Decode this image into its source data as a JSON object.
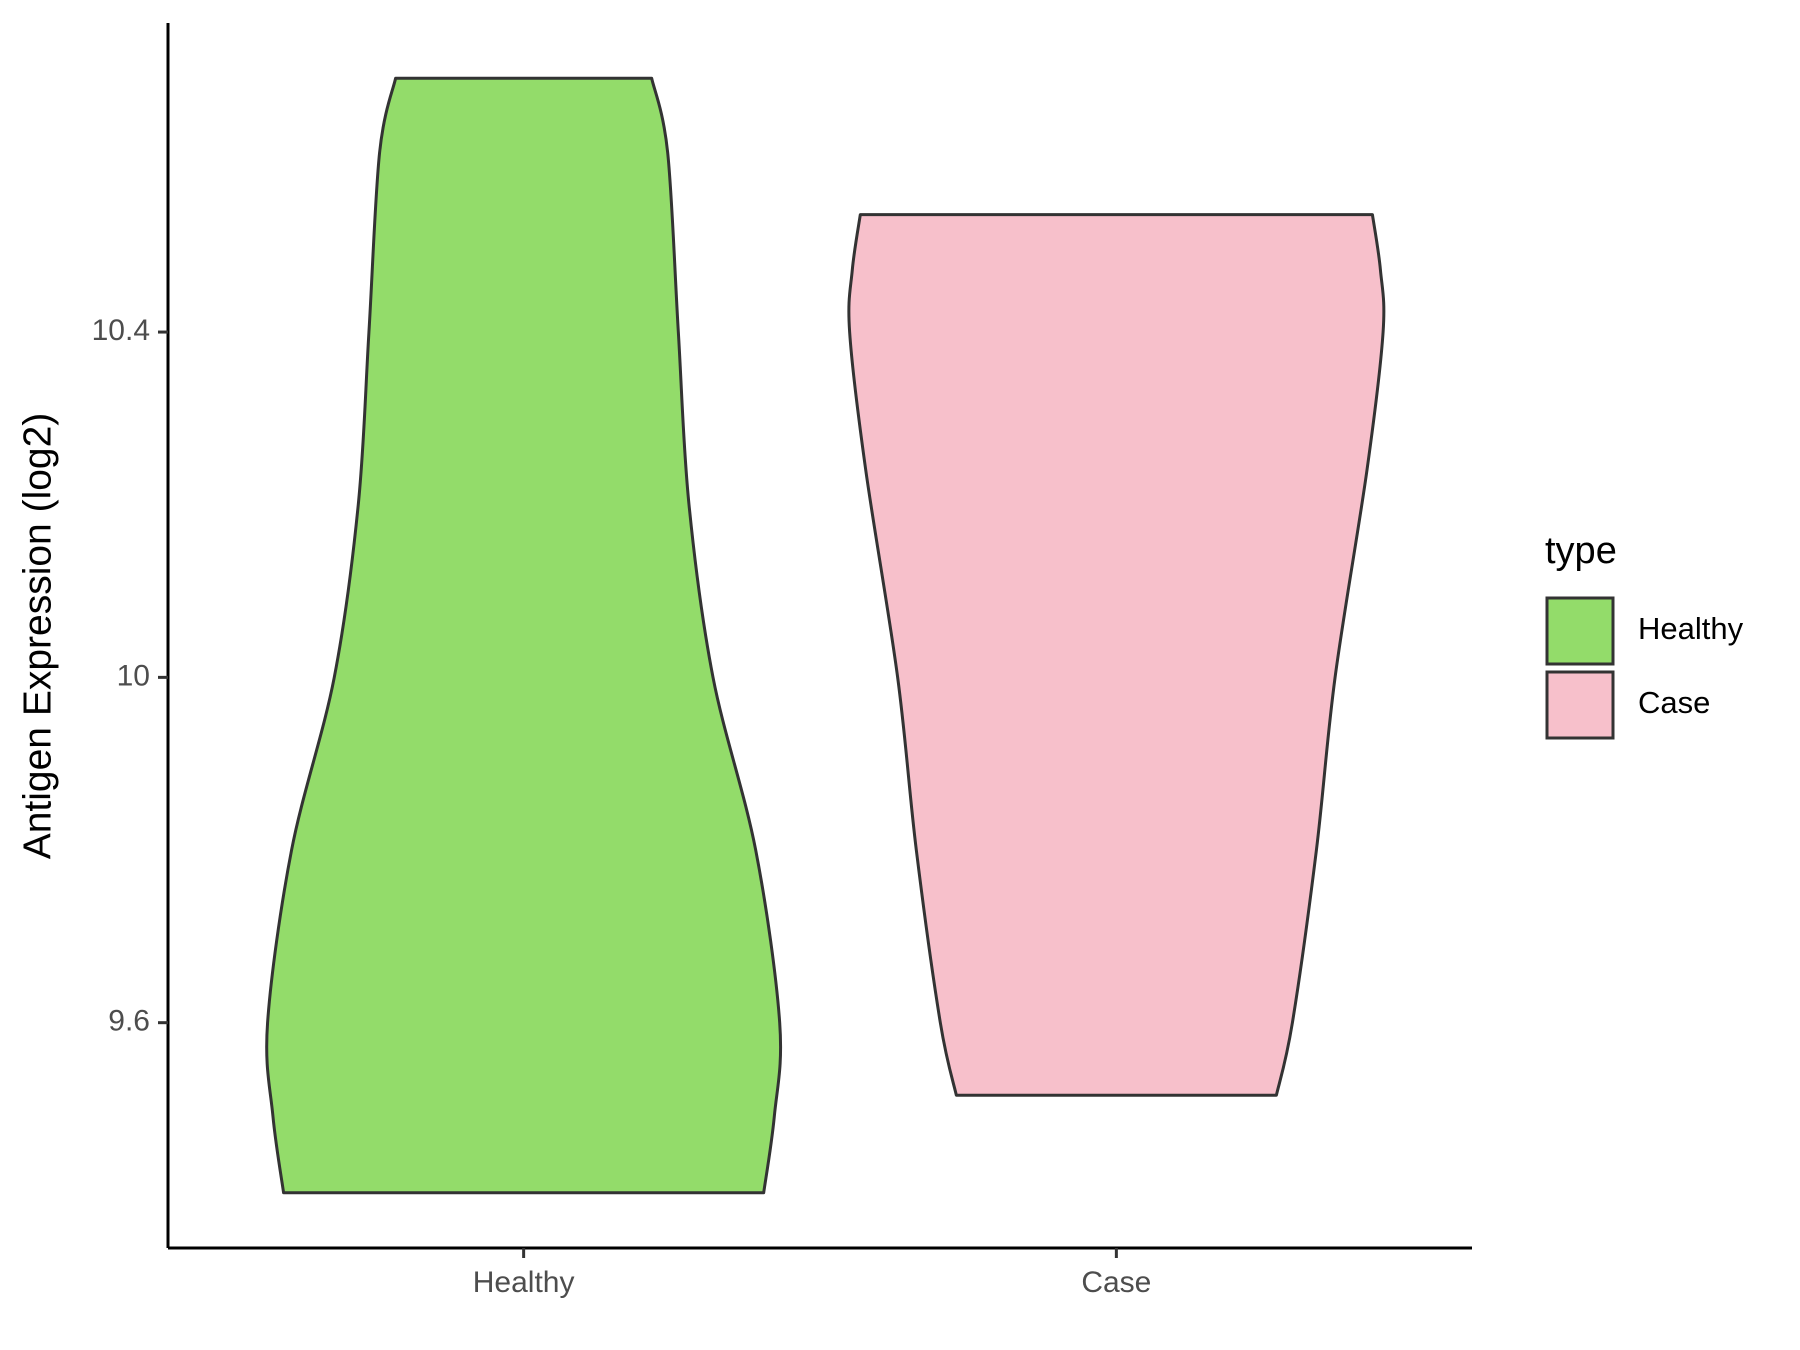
{
  "chart_data": {
    "type": "violin",
    "y_label": "Antigen Expression (log2)",
    "categories": [
      "Healthy",
      "Case"
    ],
    "legend_title": "type",
    "legend_position": "right",
    "ylim": [
      9.339,
      10.758
    ],
    "yticks": [
      9.6,
      10.0,
      10.4
    ],
    "outline_color": "#333333",
    "series": [
      {
        "name": "Healthy",
        "color": "#93dc6a",
        "y": [
          10.694,
          10.608,
          10.4,
          10.2,
          10.0,
          9.8,
          9.6,
          9.492,
          9.403
        ],
        "widths": [
          0.48,
          0.54,
          0.58,
          0.62,
          0.71,
          0.87,
          0.96,
          0.94,
          0.9
        ]
      },
      {
        "name": "Case",
        "color": "#f7c0cb",
        "y": [
          10.536,
          10.472,
          10.4,
          10.241,
          10.0,
          9.8,
          9.6,
          9.516
        ],
        "widths": [
          0.96,
          0.99,
          1.0,
          0.94,
          0.82,
          0.75,
          0.66,
          0.6
        ]
      }
    ]
  }
}
